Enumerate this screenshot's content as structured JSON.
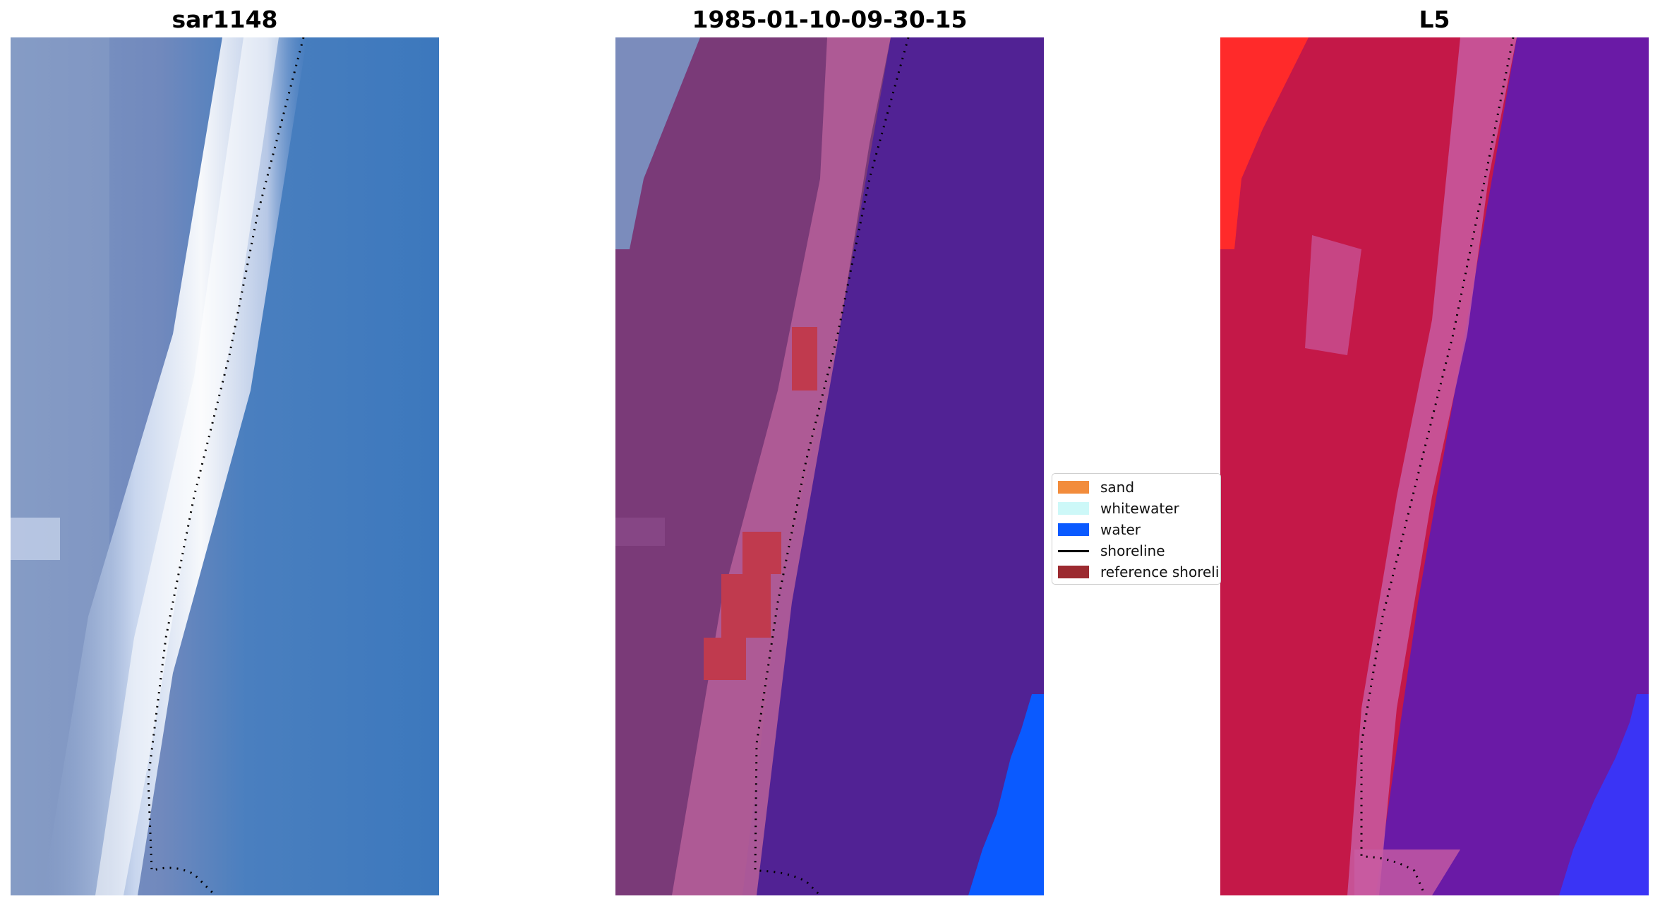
{
  "panels": [
    {
      "title": "sar1148"
    },
    {
      "title": "1985-01-10-09-30-15"
    },
    {
      "title": "L5"
    }
  ],
  "legend": {
    "items": [
      {
        "label": "sand",
        "color": "#f28c3c",
        "kind": "patch"
      },
      {
        "label": "whitewater",
        "color": "#cdf8f8",
        "kind": "patch"
      },
      {
        "label": "water",
        "color": "#0a5aff",
        "kind": "patch"
      },
      {
        "label": "shoreline",
        "color": "#000000",
        "kind": "line"
      },
      {
        "label": "reference shoreline",
        "color": "#9c2a30",
        "kind": "patch"
      }
    ]
  }
}
